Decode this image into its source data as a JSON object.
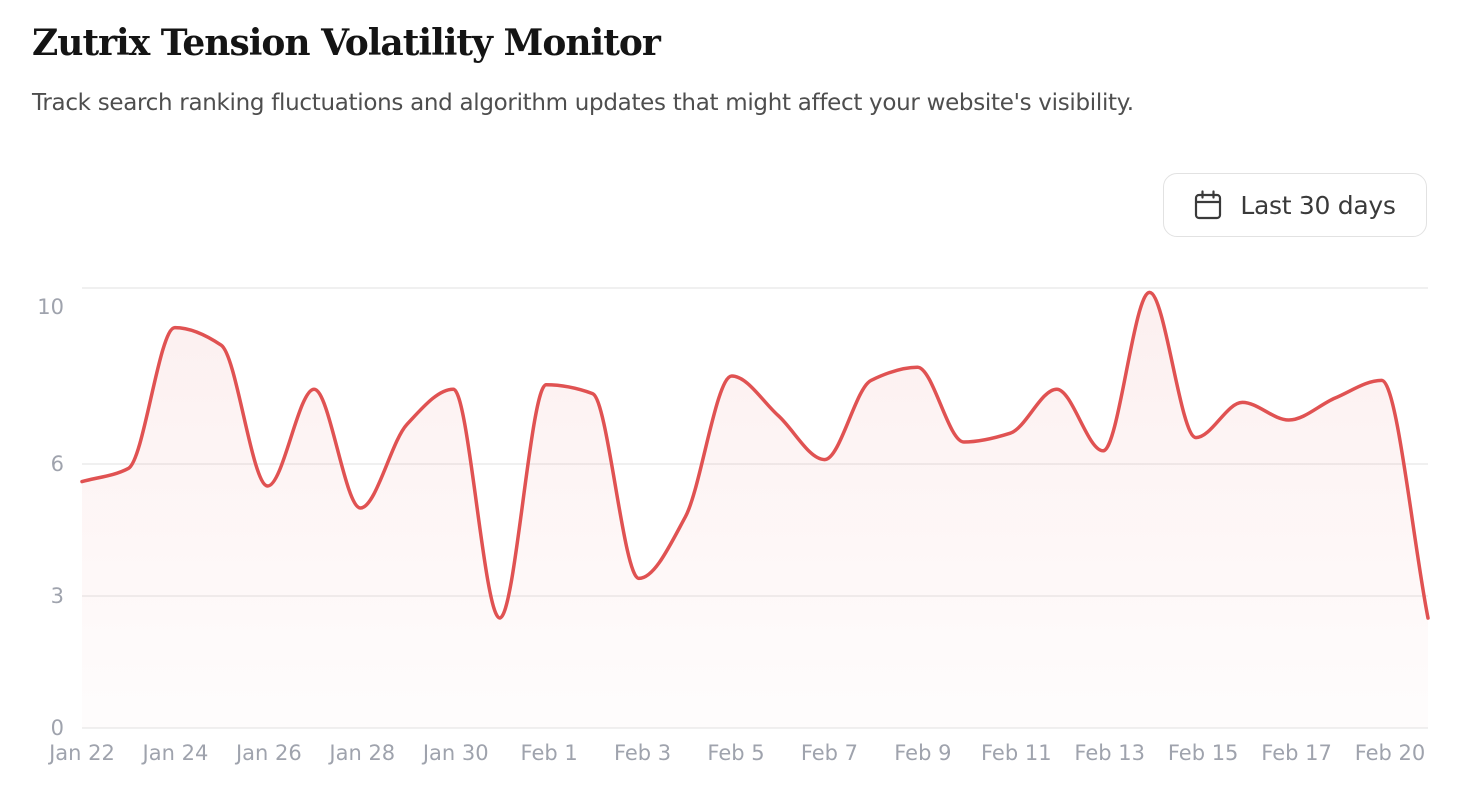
{
  "header": {
    "title": "Zutrix Tension Volatility Monitor",
    "subtitle": "Track search ranking fluctuations and algorithm updates that might affect your website's visibility."
  },
  "range_selector": {
    "label": "Last 30 days",
    "icon": "calendar-icon"
  },
  "colors": {
    "line": "#e05252",
    "area_fill": "#fdf0f0",
    "grid": "#ebebeb",
    "tick_text": "#9fa3ad"
  },
  "chart_data": {
    "type": "area",
    "x_tick_labels": [
      "Jan 22",
      "Jan 24",
      "Jan 26",
      "Jan 28",
      "Jan 30",
      "Feb 1",
      "Feb 3",
      "Feb 5",
      "Feb 7",
      "Feb 9",
      "Feb 11",
      "Feb 13",
      "Feb 15",
      "Feb 17",
      "Feb 20"
    ],
    "y_ticks": [
      0,
      3,
      6,
      10
    ],
    "ylim": [
      0,
      10
    ],
    "grid": true,
    "series": [
      {
        "x": [
          "2025-01-22",
          "2025-01-23",
          "2025-01-24",
          "2025-01-25",
          "2025-01-26",
          "2025-01-27",
          "2025-01-28",
          "2025-01-29",
          "2025-01-30",
          "2025-01-31",
          "2025-02-01",
          "2025-02-02",
          "2025-02-03",
          "2025-02-04",
          "2025-02-05",
          "2025-02-06",
          "2025-02-07",
          "2025-02-08",
          "2025-02-09",
          "2025-02-10",
          "2025-02-11",
          "2025-02-12",
          "2025-02-13",
          "2025-02-14",
          "2025-02-15",
          "2025-02-16",
          "2025-02-17",
          "2025-02-18",
          "2025-02-19",
          "2025-02-20"
        ],
        "values": [
          5.6,
          5.9,
          9.1,
          8.7,
          5.5,
          7.7,
          5.0,
          6.9,
          7.7,
          2.5,
          7.8,
          7.6,
          3.4,
          4.8,
          8.0,
          7.1,
          6.1,
          7.9,
          8.2,
          6.5,
          6.7,
          7.7,
          6.3,
          9.9,
          6.6,
          7.4,
          7.0,
          7.5,
          7.9,
          2.5
        ]
      }
    ]
  }
}
